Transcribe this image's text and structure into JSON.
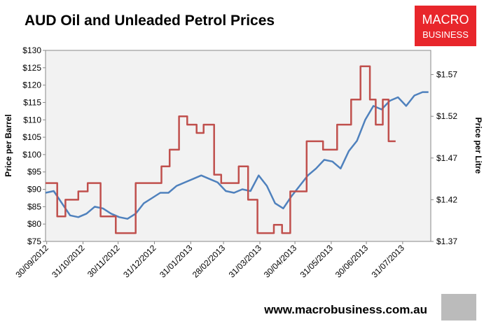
{
  "chart_data": {
    "type": "line",
    "title": "AUD Oil and Unleaded Petrol Prices",
    "logo": [
      "MACRO",
      "BUSINESS"
    ],
    "footer": "www.macrobusiness.com.au",
    "ylabel": "Price per Barrel",
    "y2label": "Price per Litre",
    "xlim": [
      "2012-09-29",
      "2013-08-24"
    ],
    "xticks": [
      {
        "value": "2012-09-30",
        "label": "30/09/2012"
      },
      {
        "value": "2012-10-31",
        "label": "31/10/2012"
      },
      {
        "value": "2012-11-30",
        "label": "30/11/2012"
      },
      {
        "value": "2012-12-31",
        "label": "31/12/2012"
      },
      {
        "value": "2013-01-31",
        "label": "31/01/2013"
      },
      {
        "value": "2013-02-28",
        "label": "28/02/2013"
      },
      {
        "value": "2013-03-31",
        "label": "31/03/2013"
      },
      {
        "value": "2013-04-30",
        "label": "30/04/2013"
      },
      {
        "value": "2013-05-31",
        "label": "31/05/2013"
      },
      {
        "value": "2013-06-30",
        "label": "30/06/2013"
      },
      {
        "value": "2013-07-31",
        "label": "31/07/2013"
      }
    ],
    "ylim": [
      75,
      130
    ],
    "yticks": [
      {
        "value": 75,
        "label": "$75"
      },
      {
        "value": 80,
        "label": "$80"
      },
      {
        "value": 85,
        "label": "$85"
      },
      {
        "value": 90,
        "label": "$90"
      },
      {
        "value": 95,
        "label": "$95"
      },
      {
        "value": 100,
        "label": "$100"
      },
      {
        "value": 105,
        "label": "$105"
      },
      {
        "value": 110,
        "label": "$110"
      },
      {
        "value": 115,
        "label": "$115"
      },
      {
        "value": 120,
        "label": "$120"
      },
      {
        "value": 125,
        "label": "$125"
      },
      {
        "value": 130,
        "label": "$130"
      }
    ],
    "y2lim": [
      1.37,
      1.599
    ],
    "y2ticks": [
      {
        "value": 1.37,
        "label": "$1.37"
      },
      {
        "value": 1.42,
        "label": "$1.42"
      },
      {
        "value": 1.47,
        "label": "$1.47"
      },
      {
        "value": 1.52,
        "label": "$1.52"
      },
      {
        "value": 1.57,
        "label": "$1.57"
      }
    ],
    "series": [
      {
        "color": "#4f81bd",
        "axis": "y",
        "x": [
          "2012-09-29",
          "2012-10-06",
          "2012-10-13",
          "2012-10-20",
          "2012-10-27",
          "2012-11-03",
          "2012-11-10",
          "2012-11-17",
          "2012-11-24",
          "2012-12-01",
          "2012-12-08",
          "2012-12-15",
          "2012-12-22",
          "2012-12-29",
          "2013-01-05",
          "2013-01-12",
          "2013-01-19",
          "2013-01-26",
          "2013-02-02",
          "2013-02-09",
          "2013-02-16",
          "2013-02-23",
          "2013-03-02",
          "2013-03-09",
          "2013-03-16",
          "2013-03-23",
          "2013-03-30",
          "2013-04-06",
          "2013-04-13",
          "2013-04-20",
          "2013-04-27",
          "2013-05-04",
          "2013-05-11",
          "2013-05-18",
          "2013-05-25",
          "2013-06-01",
          "2013-06-08",
          "2013-06-15",
          "2013-06-22",
          "2013-06-29",
          "2013-07-06",
          "2013-07-13",
          "2013-07-20",
          "2013-07-27",
          "2013-08-03",
          "2013-08-10",
          "2013-08-17",
          "2013-08-22"
        ],
        "values": [
          89,
          89.5,
          86,
          82.5,
          82,
          83,
          85,
          84.5,
          83,
          82,
          81.5,
          83,
          86,
          87.5,
          89,
          89,
          91,
          92,
          93,
          94,
          93,
          92,
          89.5,
          89,
          90,
          89.5,
          94,
          91,
          86,
          84.5,
          88,
          91,
          94,
          96,
          98.5,
          98,
          96,
          101,
          104,
          110,
          114,
          113,
          115.5,
          116.5,
          114,
          117,
          118,
          118
        ]
      },
      {
        "color": "#c0504d",
        "axis": "y2",
        "drawstyle": "steps-post",
        "x": [
          "2012-09-29",
          "2012-10-09",
          "2012-10-16",
          "2012-10-27",
          "2012-11-04",
          "2012-11-15",
          "2012-11-28",
          "2012-12-15",
          "2013-01-06",
          "2013-01-13",
          "2013-01-21",
          "2013-01-28",
          "2013-02-05",
          "2013-02-11",
          "2013-02-20",
          "2013-02-26",
          "2013-03-13",
          "2013-03-21",
          "2013-03-29",
          "2013-04-12",
          "2013-04-19",
          "2013-04-26",
          "2013-05-10",
          "2013-05-24",
          "2013-06-05",
          "2013-06-17",
          "2013-06-25",
          "2013-07-03",
          "2013-07-08",
          "2013-07-14",
          "2013-07-19",
          "2013-07-25"
        ],
        "values": [
          1.44,
          1.4,
          1.42,
          1.43,
          1.44,
          1.4,
          1.38,
          1.44,
          1.46,
          1.48,
          1.52,
          1.51,
          1.5,
          1.51,
          1.45,
          1.44,
          1.46,
          1.42,
          1.38,
          1.39,
          1.38,
          1.43,
          1.49,
          1.48,
          1.51,
          1.54,
          1.58,
          1.54,
          1.51,
          1.54,
          1.49,
          1.49
        ]
      }
    ]
  }
}
